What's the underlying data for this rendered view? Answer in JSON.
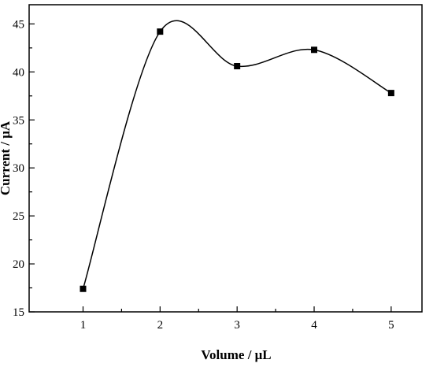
{
  "chart_data": {
    "type": "line",
    "title": "",
    "xlabel": "Volume / μL",
    "ylabel": "Current / μA",
    "x": [
      1,
      2,
      3,
      4,
      5
    ],
    "series": [
      {
        "values": [
          17.4,
          44.2,
          40.6,
          42.3,
          37.8
        ]
      }
    ],
    "xlim": [
      0.3,
      5.4
    ],
    "ylim": [
      15,
      47
    ],
    "x_ticks": [
      "1",
      "2",
      "3",
      "4",
      "5"
    ],
    "y_ticks": [
      "15",
      "20",
      "25",
      "30",
      "35",
      "40",
      "45"
    ],
    "grid": false,
    "legend": "none",
    "line_color": "#000000",
    "marker": "square",
    "line_style": "smooth spline"
  }
}
